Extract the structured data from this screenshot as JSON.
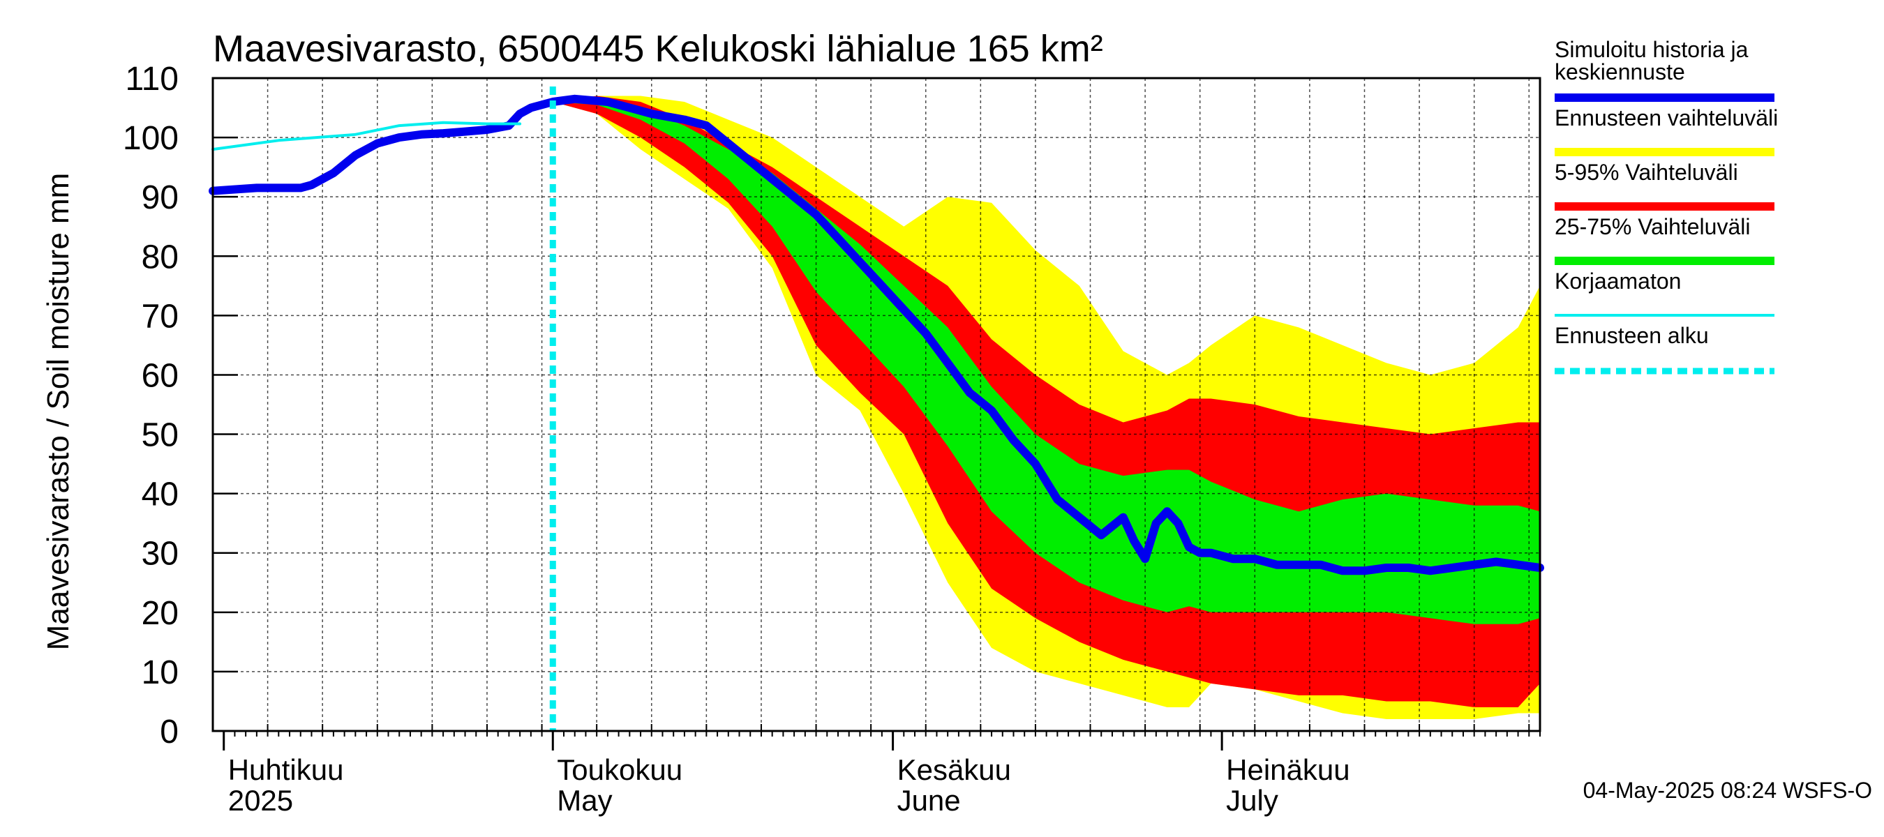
{
  "chart_data": {
    "type": "area",
    "title": "Maavesivarasto, 6500445 Kelukoski lähialue 165 km²",
    "ylabel": "Maavesivarasto / Soil moisture   mm",
    "xlabel": "",
    "ylim": [
      0,
      110
    ],
    "xlim_days": [
      0,
      120
    ],
    "yticks": [
      "0",
      "10",
      "20",
      "30",
      "40",
      "50",
      "60",
      "70",
      "80",
      "90",
      "100",
      "110"
    ],
    "grid": true,
    "month_labels": [
      {
        "day": 0,
        "fi": "Huhtikuu",
        "en": "2025"
      },
      {
        "day": 30,
        "fi": "Toukokuu",
        "en": "May"
      },
      {
        "day": 61,
        "fi": "Kesäkuu",
        "en": "June"
      },
      {
        "day": 91,
        "fi": "Heinäkuu",
        "en": "July"
      }
    ],
    "forecast_start_day": 30,
    "series": [
      {
        "name": "Simuloitu historia ja keskiennuste",
        "color": "#0000ee",
        "x": [
          -1,
          3,
          7,
          8,
          10,
          12,
          14,
          16,
          18,
          20,
          22,
          24,
          26,
          27,
          28,
          30,
          32,
          35,
          37,
          39,
          42,
          44,
          46,
          48,
          50,
          52,
          54,
          56,
          58,
          60,
          62,
          64,
          66,
          68,
          70,
          72,
          74,
          76,
          78,
          80,
          82,
          83,
          84,
          85,
          86,
          87,
          88,
          89,
          90,
          92,
          94,
          96,
          98,
          100,
          102,
          104,
          106,
          108,
          110,
          112,
          114,
          116,
          118,
          120
        ],
        "values": [
          91,
          91.5,
          91.5,
          92,
          94,
          97,
          99,
          100,
          100.5,
          100.7,
          101,
          101.3,
          102,
          104,
          105,
          106,
          106.5,
          106,
          105,
          104,
          103,
          102,
          99,
          96,
          93,
          90,
          87,
          83,
          79,
          75,
          71,
          67,
          62,
          57,
          54,
          49,
          45,
          39,
          36,
          33,
          36,
          32,
          29,
          35,
          37,
          35,
          31,
          30,
          30,
          29,
          29,
          28,
          28,
          28,
          27,
          27,
          27.5,
          27.5,
          27,
          27.5,
          28,
          28.5,
          28,
          27.5
        ]
      },
      {
        "name": "Korjaamaton",
        "color": "#00eeee",
        "x": [
          -1,
          5,
          12,
          16,
          20,
          24,
          27
        ],
        "values": [
          98,
          99.5,
          100.5,
          102,
          102.5,
          102.3,
          102.3
        ]
      }
    ],
    "bands": [
      {
        "name": "Ennusteen vaihteluväli",
        "color": "#ffff00",
        "x": [
          30,
          34,
          38,
          42,
          46,
          50,
          54,
          58,
          62,
          66,
          70,
          74,
          78,
          82,
          86,
          88,
          90,
          94,
          98,
          102,
          106,
          110,
          114,
          118,
          120
        ],
        "upper": [
          106,
          107,
          107,
          106,
          103,
          100,
          95,
          90,
          85,
          90,
          89,
          81,
          75,
          64,
          60,
          62,
          65,
          70,
          68,
          65,
          62,
          60,
          62,
          68,
          75
        ],
        "lower": [
          106,
          104,
          98,
          93,
          88,
          78,
          60,
          54,
          40,
          25,
          14,
          10,
          8,
          6,
          4,
          4,
          8,
          7,
          5,
          3,
          2,
          2,
          2,
          3,
          3
        ]
      },
      {
        "name": "5-95% Vaihteluväli",
        "color": "#ff0000",
        "x": [
          30,
          34,
          38,
          42,
          46,
          50,
          54,
          58,
          62,
          66,
          70,
          74,
          78,
          82,
          86,
          88,
          90,
          94,
          98,
          102,
          106,
          110,
          114,
          118,
          120
        ],
        "upper": [
          106,
          107,
          106,
          103,
          99,
          95,
          90,
          85,
          80,
          75,
          66,
          60,
          55,
          52,
          54,
          56,
          56,
          55,
          53,
          52,
          51,
          50,
          51,
          52,
          52
        ],
        "lower": [
          106,
          104,
          100,
          95,
          89,
          80,
          65,
          57,
          50,
          35,
          24,
          19,
          15,
          12,
          10,
          9,
          8,
          7,
          6,
          6,
          5,
          5,
          4,
          4,
          8
        ]
      },
      {
        "name": "25-75% Vaihteluväli",
        "color": "#00ee00",
        "x": [
          30,
          34,
          38,
          42,
          46,
          50,
          54,
          58,
          62,
          66,
          70,
          74,
          78,
          82,
          86,
          88,
          90,
          94,
          98,
          102,
          106,
          110,
          114,
          118,
          120
        ],
        "upper": [
          106,
          106.5,
          105,
          102,
          98,
          94,
          88,
          82,
          75,
          68,
          58,
          50,
          45,
          43,
          44,
          44,
          42,
          39,
          37,
          39,
          40,
          39,
          38,
          38,
          37
        ],
        "lower": [
          106,
          105.5,
          103,
          99,
          93,
          85,
          74,
          66,
          58,
          48,
          37,
          30,
          25,
          22,
          20,
          21,
          20,
          20,
          20,
          20,
          20,
          19,
          18,
          18,
          19
        ]
      }
    ]
  },
  "legend": {
    "items": [
      {
        "label_lines": [
          "Simuloitu historia ja",
          "keskiennuste"
        ],
        "color": "#0000ee",
        "style": "solid"
      },
      {
        "label_lines": [
          "Ennusteen vaihteluväli"
        ],
        "color": "#ffff00",
        "style": "solid"
      },
      {
        "label_lines": [
          "5-95% Vaihteluväli"
        ],
        "color": "#ff0000",
        "style": "solid"
      },
      {
        "label_lines": [
          "25-75% Vaihteluväli"
        ],
        "color": "#00ee00",
        "style": "solid"
      },
      {
        "label_lines": [
          "Korjaamaton"
        ],
        "color": "#00eeee",
        "style": "thin"
      },
      {
        "label_lines": [
          "Ennusteen alku"
        ],
        "color": "#00eeee",
        "style": "dashed"
      }
    ]
  },
  "footer": {
    "timestamp": "04-May-2025 08:24 WSFS-O"
  }
}
